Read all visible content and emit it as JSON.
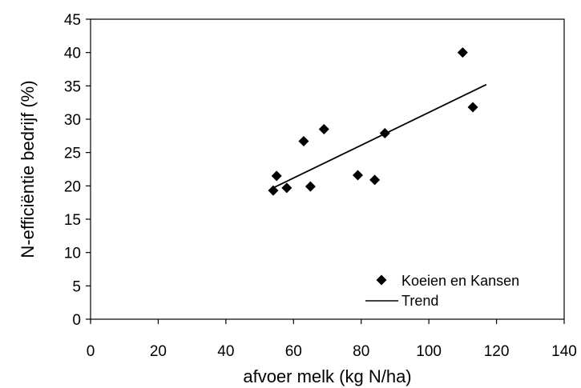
{
  "chart_data": {
    "type": "scatter",
    "title": "",
    "xlabel": "afvoer melk (kg N/ha)",
    "ylabel": "N-efficiëntie bedrijf (%)",
    "xlim": [
      0,
      140
    ],
    "ylim": [
      0,
      45
    ],
    "xticks": [
      0,
      20,
      40,
      60,
      80,
      100,
      120,
      140
    ],
    "yticks": [
      0,
      5,
      10,
      15,
      20,
      25,
      30,
      35,
      40,
      45
    ],
    "grid": false,
    "legend_position": "bottom-right",
    "series": [
      {
        "name": "Koeien en Kansen",
        "marker": "diamond",
        "color": "#000000",
        "points": [
          {
            "x": 54,
            "y": 19.3
          },
          {
            "x": 55,
            "y": 21.5
          },
          {
            "x": 58,
            "y": 19.7
          },
          {
            "x": 63,
            "y": 26.7
          },
          {
            "x": 65,
            "y": 19.9
          },
          {
            "x": 69,
            "y": 28.5
          },
          {
            "x": 79,
            "y": 21.6
          },
          {
            "x": 84,
            "y": 20.9
          },
          {
            "x": 87,
            "y": 27.9
          },
          {
            "x": 110,
            "y": 40.0
          },
          {
            "x": 113,
            "y": 31.8
          }
        ]
      },
      {
        "name": "Trend",
        "type": "line",
        "color": "#000000",
        "points": [
          {
            "x": 54,
            "y": 19.7
          },
          {
            "x": 117,
            "y": 35.2
          }
        ]
      }
    ]
  }
}
